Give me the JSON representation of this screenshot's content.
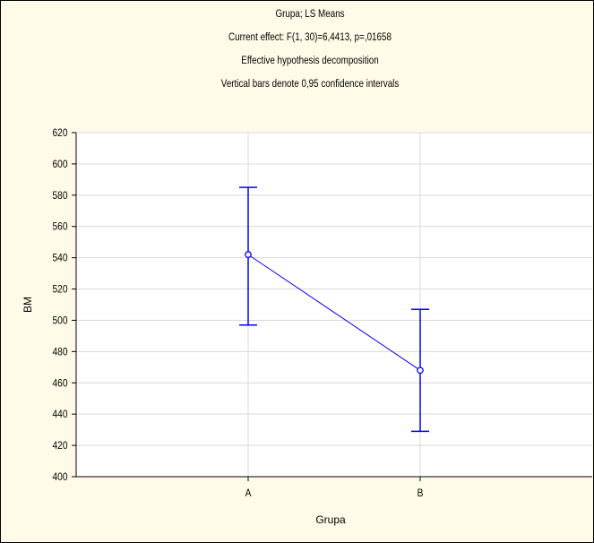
{
  "chart_data": {
    "type": "line",
    "title_lines": [
      "Grupa; LS Means",
      "Current effect: F(1, 30)=6,4413, p=,01658",
      "Effective hypothesis decomposition",
      "Vertical bars denote 0,95 confidence intervals"
    ],
    "xlabel": "Grupa",
    "ylabel": "BM",
    "categories": [
      "A",
      "B"
    ],
    "series": [
      {
        "values": [
          542,
          468
        ],
        "ci_lower": [
          497,
          429
        ],
        "ci_upper": [
          585,
          507
        ]
      }
    ],
    "ylim": [
      400,
      620
    ],
    "yticks": [
      "400",
      "420",
      "440",
      "460",
      "480",
      "500",
      "520",
      "540",
      "560",
      "580",
      "600",
      "620"
    ],
    "grid": true,
    "colors": {
      "series": "#0000ff",
      "background": "#fffbe8",
      "plot_area": "#ffffff",
      "grid": "#d9d9d9",
      "axes": "#000000"
    }
  }
}
